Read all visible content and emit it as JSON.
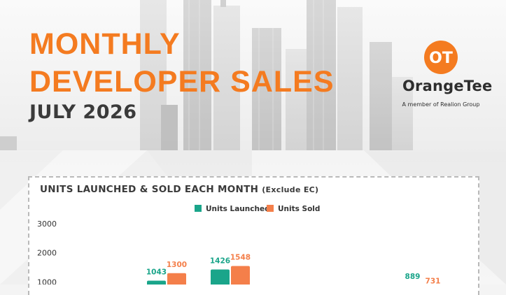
{
  "header": {
    "title_line1": "MONTHLY",
    "title_line2": "DEVELOPER SALES",
    "period": "JULY 2026"
  },
  "brand": {
    "logo_glyph": "OT",
    "name": "OrangeTee",
    "tagline": "A member of Realion Group"
  },
  "colors": {
    "accent": "#f47b20",
    "launched": "#1aa58a",
    "sold": "#f47f4a"
  },
  "chart_data": {
    "type": "bar",
    "title": "UNITS LAUNCHED & SOLD EACH MONTH",
    "title_note": "(Exclude EC)",
    "yticks": [
      1000,
      2000,
      3000
    ],
    "ylim": [
      0,
      3000
    ],
    "legend_position": "top",
    "series": [
      {
        "name": "Units Launched",
        "values": [
          1043,
          1426,
          889
        ]
      },
      {
        "name": "Units Sold",
        "values": [
          1300,
          1548,
          731
        ]
      }
    ]
  }
}
